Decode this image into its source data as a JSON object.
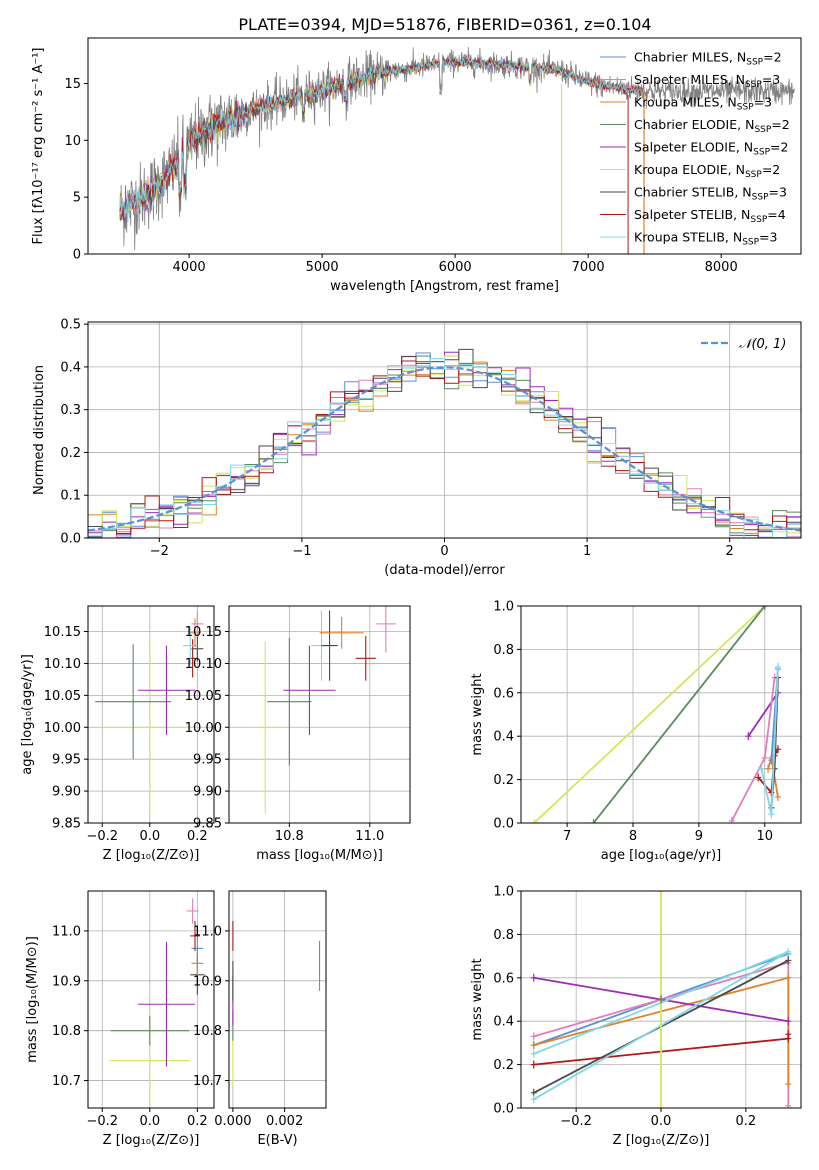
{
  "figure_title": "PLATE=0394, MJD=51876, FIBERID=0361, z=0.104",
  "colors": {
    "chab_miles": "#5B8FD8",
    "salp_miles": "#E27FB8",
    "krou_miles": "#E0822C",
    "chab_elodie": "#5A8A5E",
    "salp_elodie": "#9C2BB8",
    "krou_elodie": "#CFE85A",
    "chab_stelib": "#4A4A4A",
    "salp_stelib": "#B01818",
    "krou_stelib": "#7FD8E6",
    "normal": "#5B8FD8",
    "spectrum": "#808080"
  },
  "chart_data": [
    {
      "type": "line",
      "id": "spectrum",
      "xlabel": "wavelength [Angstrom, rest frame]",
      "ylabel": "Flux [fλ10⁻¹⁷ erg cm⁻² s⁻¹ A⁻¹]",
      "xlim": [
        3240,
        8600
      ],
      "ylim": [
        0,
        19
      ],
      "xticks": [
        "4000",
        "5000",
        "6000",
        "7000",
        "8000"
      ],
      "yticks": [
        "0",
        "5",
        "10",
        "15"
      ],
      "continuum_x": [
        3480,
        3560,
        3700,
        3850,
        3950,
        4050,
        4200,
        4400,
        4600,
        4800,
        5000,
        5200,
        5400,
        5600,
        5800,
        6000,
        6200,
        6400,
        6600,
        6800,
        6950,
        7100,
        7300,
        7500
      ],
      "continuum_y": [
        3.8,
        4.3,
        5.4,
        7.0,
        8.8,
        10.2,
        11.3,
        12.4,
        13.1,
        13.8,
        14.4,
        15.2,
        15.8,
        16.2,
        16.6,
        16.9,
        16.8,
        16.6,
        16.4,
        16.1,
        15.3,
        14.8,
        14.5,
        14.3
      ],
      "legend": [
        "Chabrier MILES, N_SSP=2",
        "Salpeter MILES, N_SSP=3",
        "Kroupa MILES, N_SSP=3",
        "Chabrier ELODIE, N_SSP=2",
        "Salpeter ELODIE, N_SSP=2",
        "Kroupa ELODIE, N_SSP=2",
        "Chabrier STELIB, N_SSP=3",
        "Salpeter STELIB, N_SSP=4",
        "Kroupa STELIB, N_SSP=3"
      ],
      "grid": false,
      "legend_position": "upper-right"
    },
    {
      "type": "line",
      "id": "residuals",
      "xlabel": "(data-model)/error",
      "ylabel": "Normed distribution",
      "xlim": [
        -2.5,
        2.5
      ],
      "ylim": [
        0,
        0.505
      ],
      "xticks": [
        "−2",
        "−1",
        "0",
        "1",
        "2"
      ],
      "yticks": [
        "0.0",
        "0.1",
        "0.2",
        "0.3",
        "0.4",
        "0.5"
      ],
      "legend": [
        "𝒩(0, 1)"
      ],
      "grid": true,
      "legend_position": "upper-right"
    },
    {
      "type": "scatter",
      "id": "age_vs_Z",
      "xlabel": "Z [log₁₀(Z/Z⊙)]",
      "ylabel": "age  [log₁₀(age/yr)]",
      "xlim": [
        -0.26,
        0.27
      ],
      "ylim": [
        9.85,
        10.19
      ],
      "xticks": [
        "−0.2",
        "0.0",
        "0.2"
      ],
      "yticks": [
        "9.85",
        "9.90",
        "9.95",
        "10.00",
        "10.05",
        "10.10",
        "10.15"
      ],
      "points": [
        {
          "c": "krou_elodie",
          "x": 0.0,
          "y": 10.0,
          "xe": 0.4,
          "ye": 0.27
        },
        {
          "c": "chab_elodie",
          "x": -0.07,
          "y": 10.04,
          "xe": 0.32,
          "ye": 0.18
        },
        {
          "c": "salp_elodie",
          "x": 0.07,
          "y": 10.058,
          "xe": 0.24,
          "ye": 0.14
        },
        {
          "c": "salp_stelib",
          "x": 0.18,
          "y": 10.108,
          "xe": 0.04,
          "ye": 0.06
        },
        {
          "c": "chab_stelib",
          "x": 0.2,
          "y": 10.123,
          "xe": 0.05,
          "ye": 0.04
        },
        {
          "c": "krou_stelib",
          "x": 0.17,
          "y": 10.128,
          "xe": 0.06,
          "ye": 0.06
        },
        {
          "c": "krou_miles",
          "x": 0.19,
          "y": 10.148,
          "xe": 0.05,
          "ye": 0.045
        },
        {
          "c": "salp_miles",
          "x": 0.2,
          "y": 10.162,
          "xe": 0.05,
          "ye": 0.04
        }
      ],
      "grid": true
    },
    {
      "type": "scatter",
      "id": "age_vs_mass",
      "xlabel": "mass [log₁₀(M/M⊙)]",
      "ylabel": "",
      "xlim": [
        10.65,
        11.1
      ],
      "ylim": [
        9.85,
        10.19
      ],
      "xticks": [
        "10.8",
        "11.0"
      ],
      "yticks": [
        "9.85",
        "9.90",
        "9.95",
        "10.00",
        "10.05",
        "10.10",
        "10.15"
      ],
      "points": [
        {
          "c": "krou_elodie",
          "x": 10.74,
          "y": 10.0,
          "xe": 0.07,
          "ye": 0.27
        },
        {
          "c": "chab_elodie",
          "x": 10.8,
          "y": 10.04,
          "xe": 0.11,
          "ye": 0.2
        },
        {
          "c": "salp_elodie",
          "x": 10.85,
          "y": 10.058,
          "xe": 0.13,
          "ye": 0.14
        },
        {
          "c": "krou_stelib",
          "x": 10.88,
          "y": 10.128,
          "xe": 0.05,
          "ye": 0.11
        },
        {
          "c": "chab_stelib",
          "x": 10.9,
          "y": 10.128,
          "xe": 0.04,
          "ye": 0.11
        },
        {
          "c": "krou_miles",
          "x": 10.93,
          "y": 10.148,
          "xe": 0.11,
          "ye": 0.05
        },
        {
          "c": "salp_stelib",
          "x": 10.99,
          "y": 10.108,
          "xe": 0.05,
          "ye": 0.07
        },
        {
          "c": "salp_miles",
          "x": 11.04,
          "y": 10.162,
          "xe": 0.05,
          "ye": 0.09
        }
      ],
      "grid": true
    },
    {
      "type": "line",
      "id": "massweight_vs_age",
      "xlabel": "age  [log₁₀(age/yr)]",
      "ylabel": "mass weight",
      "xlim": [
        6.3,
        10.55
      ],
      "ylim": [
        0,
        1
      ],
      "xticks": [
        "7",
        "8",
        "9",
        "10"
      ],
      "yticks": [
        "0.0",
        "0.2",
        "0.4",
        "0.6",
        "0.8",
        "1.0"
      ],
      "series": [
        {
          "c": "krou_elodie",
          "x": [
            6.5,
            10.0
          ],
          "y": [
            0.0,
            1.0
          ]
        },
        {
          "c": "chab_elodie",
          "x": [
            7.4,
            10.0
          ],
          "y": [
            0.0,
            1.0
          ]
        },
        {
          "c": "salp_elodie",
          "x": [
            9.75,
            10.2
          ],
          "y": [
            0.4,
            0.6
          ]
        },
        {
          "c": "salp_miles",
          "x": [
            9.5,
            10.0,
            10.15
          ],
          "y": [
            0.01,
            0.3,
            0.67
          ]
        },
        {
          "c": "krou_miles",
          "x": [
            10.05,
            10.1,
            10.2
          ],
          "y": [
            0.25,
            0.3,
            0.12
          ]
        },
        {
          "c": "salp_stelib",
          "x": [
            9.9,
            10.1,
            10.15,
            10.2
          ],
          "y": [
            0.21,
            0.14,
            0.31,
            0.34
          ]
        },
        {
          "c": "chab_stelib",
          "x": [
            10.1,
            10.15,
            10.2
          ],
          "y": [
            0.07,
            0.25,
            0.67
          ]
        },
        {
          "c": "chab_miles",
          "x": [
            10.1,
            10.2
          ],
          "y": [
            0.29,
            0.71
          ]
        },
        {
          "c": "krou_stelib",
          "x": [
            9.95,
            10.1,
            10.2
          ],
          "y": [
            0.25,
            0.04,
            0.72
          ]
        }
      ],
      "grid": true
    },
    {
      "type": "scatter",
      "id": "mass_vs_Z",
      "xlabel": "Z [log₁₀(Z/Z⊙)]",
      "ylabel": "mass [log₁₀(M/M⊙)]",
      "xlim": [
        -0.26,
        0.27
      ],
      "ylim": [
        10.645,
        11.08
      ],
      "xticks": [
        "−0.2",
        "0.0",
        "0.2"
      ],
      "yticks": [
        "10.7",
        "10.8",
        "10.9",
        "11.0"
      ],
      "points": [
        {
          "c": "krou_elodie",
          "x": 0.0,
          "y": 10.74,
          "xe": 0.34,
          "ye": 0.2
        },
        {
          "c": "chab_elodie",
          "x": 0.0,
          "y": 10.8,
          "xe": 0.33,
          "ye": 0.06
        },
        {
          "c": "salp_elodie",
          "x": 0.07,
          "y": 10.853,
          "xe": 0.24,
          "ye": 0.25
        },
        {
          "c": "chab_stelib",
          "x": 0.2,
          "y": 10.912,
          "xe": 0.06,
          "ye": 0.08
        },
        {
          "c": "krou_miles",
          "x": 0.2,
          "y": 10.935,
          "xe": 0.05,
          "ye": 0.06
        },
        {
          "c": "chab_miles",
          "x": 0.2,
          "y": 10.965,
          "xe": 0.05,
          "ye": 0.06
        },
        {
          "c": "salp_stelib",
          "x": 0.19,
          "y": 10.99,
          "xe": 0.04,
          "ye": 0.06
        },
        {
          "c": "salp_miles",
          "x": 0.18,
          "y": 11.04,
          "xe": 0.05,
          "ye": 0.05
        }
      ],
      "grid": true
    },
    {
      "type": "scatter",
      "id": "mass_vs_ebv",
      "xlabel": "E(B-V)",
      "ylabel": "",
      "xlim": [
        -0.00015,
        0.0036
      ],
      "ylim": [
        10.645,
        11.08
      ],
      "xticks": [
        "0.000",
        "0.002"
      ],
      "yticks": [
        "10.7",
        "10.8",
        "10.9",
        "11.0"
      ],
      "points": [
        {
          "c": "krou_elodie",
          "x": 0.0,
          "y": 10.74,
          "xe": 0,
          "ye": 0.1
        },
        {
          "c": "chab_elodie",
          "x": 0.0,
          "y": 10.81,
          "xe": 0,
          "ye": 0.06
        },
        {
          "c": "salp_elodie",
          "x": 0.0,
          "y": 10.86,
          "xe": 0,
          "ye": 0.1
        },
        {
          "c": "chab_stelib",
          "x": 0.0,
          "y": 10.9,
          "xe": 0,
          "ye": 0.08
        },
        {
          "c": "salp_stelib",
          "x": 0.0,
          "y": 10.99,
          "xe": 0,
          "ye": 0.06
        },
        {
          "c": "chab_miles",
          "x": 0.00335,
          "y": 10.93,
          "xe": 0,
          "ye": 0.1
        }
      ],
      "grid": true
    },
    {
      "type": "line",
      "id": "massweight_vs_Z",
      "xlabel": "Z [log₁₀(Z/Z⊙)]",
      "ylabel": "mass weight",
      "xlim": [
        -0.33,
        0.33
      ],
      "ylim": [
        0,
        1
      ],
      "xticks": [
        "−0.2",
        "0.0",
        "0.2"
      ],
      "yticks": [
        "0.0",
        "0.2",
        "0.4",
        "0.6",
        "0.8",
        "1.0"
      ],
      "series": [
        {
          "c": "chab_miles",
          "x": [
            -0.3,
            0.3
          ],
          "y": [
            0.29,
            0.71
          ]
        },
        {
          "c": "salp_miles",
          "x": [
            -0.3,
            0.3,
            0.3
          ],
          "y": [
            0.33,
            0.67,
            0.01
          ]
        },
        {
          "c": "krou_miles",
          "x": [
            -0.3,
            0.3,
            0.3
          ],
          "y": [
            0.29,
            0.6,
            0.11
          ]
        },
        {
          "c": "salp_elodie",
          "x": [
            -0.3,
            0.3
          ],
          "y": [
            0.6,
            0.4
          ]
        },
        {
          "c": "chab_stelib",
          "x": [
            -0.3,
            0.3
          ],
          "y": [
            0.07,
            0.68
          ]
        },
        {
          "c": "salp_stelib",
          "x": [
            -0.3,
            0.3,
            0.3
          ],
          "y": [
            0.2,
            0.32,
            0.34
          ]
        },
        {
          "c": "krou_stelib",
          "x": [
            -0.3,
            0.3,
            -0.3
          ],
          "y": [
            0.04,
            0.72,
            0.25
          ]
        },
        {
          "c": "krou_elodie",
          "x": [
            0.0,
            0.0
          ],
          "y": [
            0.0,
            1.0
          ]
        },
        {
          "c": "chab_elodie",
          "x": [
            0.0,
            0.0
          ],
          "y": [
            0.5,
            0.5
          ]
        }
      ],
      "grid": true
    }
  ]
}
